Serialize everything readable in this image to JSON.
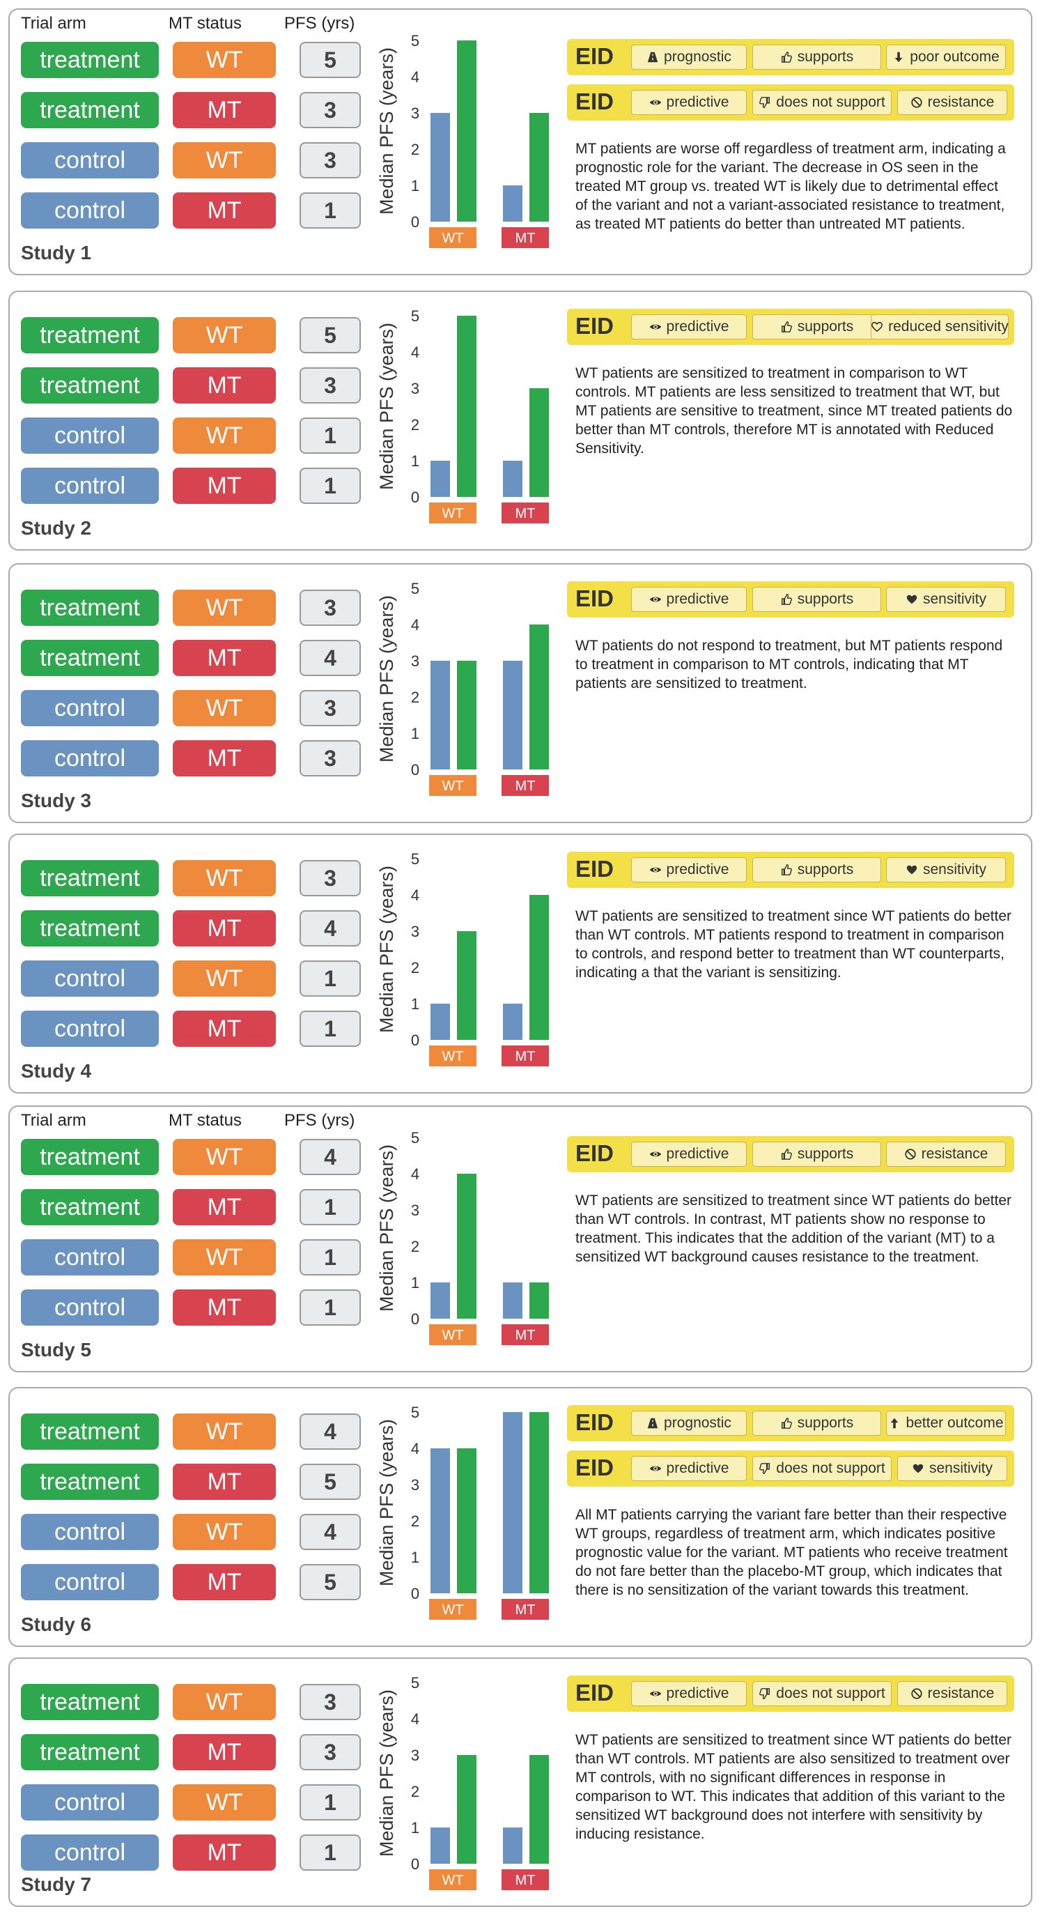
{
  "header": {
    "trial_arm": "Trial arm",
    "mt_status": "MT status",
    "pfs": "PFS (yrs)"
  },
  "axis": {
    "ylabel": "Median PFS (years)",
    "ticks": [
      "0",
      "1",
      "2",
      "3",
      "4",
      "5"
    ],
    "groups": [
      "WT",
      "MT"
    ]
  },
  "colors": {
    "treatment": "#2ea84f",
    "control": "#6b93c2",
    "wt": "#ef8a3c",
    "mt": "#d7434f",
    "eid": "#f3df48"
  },
  "studies": [
    {
      "label": "Study 1",
      "rows": [
        {
          "arm": "treatment",
          "status": "WT",
          "pfs": "5"
        },
        {
          "arm": "treatment",
          "status": "MT",
          "pfs": "3"
        },
        {
          "arm": "control",
          "status": "WT",
          "pfs": "3"
        },
        {
          "arm": "control",
          "status": "MT",
          "pfs": "1"
        }
      ],
      "eids": [
        {
          "label": "EID",
          "tags": [
            {
              "icon": "road-icon",
              "text": "prognostic"
            },
            {
              "icon": "thumbs-up-icon",
              "text": "supports"
            },
            {
              "icon": "arrow-down-icon",
              "text": "poor outcome"
            }
          ]
        },
        {
          "label": "EID",
          "tags": [
            {
              "icon": "eye-icon",
              "text": "predictive"
            },
            {
              "icon": "thumbs-down-icon",
              "text": "does not support"
            },
            {
              "icon": "ban-icon",
              "text": "resistance"
            }
          ]
        }
      ],
      "description": "MT patients are worse off regardless of treatment arm, indicating a prognostic role for the variant. The decrease in OS seen in the treated MT group vs. treated WT is likely due to detrimental effect of the variant and not a variant-associated resistance to treatment, as treated MT patients do better than untreated MT patients."
    },
    {
      "label": "Study 2",
      "rows": [
        {
          "arm": "treatment",
          "status": "WT",
          "pfs": "5"
        },
        {
          "arm": "treatment",
          "status": "MT",
          "pfs": "3"
        },
        {
          "arm": "control",
          "status": "WT",
          "pfs": "1"
        },
        {
          "arm": "control",
          "status": "MT",
          "pfs": "1"
        }
      ],
      "eids": [
        {
          "label": "EID",
          "tags": [
            {
              "icon": "eye-icon",
              "text": "predictive"
            },
            {
              "icon": "thumbs-up-icon",
              "text": "supports"
            },
            {
              "icon": "heart-outline-icon",
              "text": "reduced sensitivity"
            }
          ]
        }
      ],
      "description": "WT patients are sensitized to treatment in comparison to WT controls. MT patients are less sensitized to treatment that WT, but MT patients are sensitive to treatment, since MT treated patients do better than MT controls, therefore MT is annotated with Reduced Sensitivity."
    },
    {
      "label": "Study 3",
      "rows": [
        {
          "arm": "treatment",
          "status": "WT",
          "pfs": "3"
        },
        {
          "arm": "treatment",
          "status": "MT",
          "pfs": "4"
        },
        {
          "arm": "control",
          "status": "WT",
          "pfs": "3"
        },
        {
          "arm": "control",
          "status": "MT",
          "pfs": "3"
        }
      ],
      "eids": [
        {
          "label": "EID",
          "tags": [
            {
              "icon": "eye-icon",
              "text": "predictive"
            },
            {
              "icon": "thumbs-up-icon",
              "text": "supports"
            },
            {
              "icon": "heart-icon",
              "text": "sensitivity"
            }
          ]
        }
      ],
      "description": "WT patients do not respond to treatment, but MT patients respond to treatment in comparison to MT controls, indicating that MT patients are sensitized to treatment."
    },
    {
      "label": "Study 4",
      "rows": [
        {
          "arm": "treatment",
          "status": "WT",
          "pfs": "3"
        },
        {
          "arm": "treatment",
          "status": "MT",
          "pfs": "4"
        },
        {
          "arm": "control",
          "status": "WT",
          "pfs": "1"
        },
        {
          "arm": "control",
          "status": "MT",
          "pfs": "1"
        }
      ],
      "eids": [
        {
          "label": "EID",
          "tags": [
            {
              "icon": "eye-icon",
              "text": "predictive"
            },
            {
              "icon": "thumbs-up-icon",
              "text": "supports"
            },
            {
              "icon": "heart-icon",
              "text": "sensitivity"
            }
          ]
        }
      ],
      "description": "WT patients are sensitized to treatment since WT patients do better than WT controls. MT patients respond to treatment in comparison to controls, and respond better to treatment than WT counterparts, indicating a that the variant is sensitizing."
    },
    {
      "label": "Study 5",
      "rows": [
        {
          "arm": "treatment",
          "status": "WT",
          "pfs": "4"
        },
        {
          "arm": "treatment",
          "status": "MT",
          "pfs": "1"
        },
        {
          "arm": "control",
          "status": "WT",
          "pfs": "1"
        },
        {
          "arm": "control",
          "status": "MT",
          "pfs": "1"
        }
      ],
      "eids": [
        {
          "label": "EID",
          "tags": [
            {
              "icon": "eye-icon",
              "text": "predictive"
            },
            {
              "icon": "thumbs-up-icon",
              "text": "supports"
            },
            {
              "icon": "ban-icon",
              "text": "resistance"
            }
          ]
        }
      ],
      "description": "WT patients are sensitized to treatment since WT patients do better than WT controls. In contrast, MT patients show no response to treatment. This indicates that the addition of the variant (MT) to a sensitized WT background causes resistance to the treatment."
    },
    {
      "label": "Study 6",
      "rows": [
        {
          "arm": "treatment",
          "status": "WT",
          "pfs": "4"
        },
        {
          "arm": "treatment",
          "status": "MT",
          "pfs": "5"
        },
        {
          "arm": "control",
          "status": "WT",
          "pfs": "4"
        },
        {
          "arm": "control",
          "status": "MT",
          "pfs": "5"
        }
      ],
      "eids": [
        {
          "label": "EID",
          "tags": [
            {
              "icon": "road-icon",
              "text": "prognostic"
            },
            {
              "icon": "thumbs-up-icon",
              "text": "supports"
            },
            {
              "icon": "arrow-up-icon",
              "text": "better outcome"
            }
          ]
        },
        {
          "label": "EID",
          "tags": [
            {
              "icon": "eye-icon",
              "text": "predictive"
            },
            {
              "icon": "thumbs-down-icon",
              "text": "does not support"
            },
            {
              "icon": "heart-icon",
              "text": "sensitivity"
            }
          ]
        }
      ],
      "description": "All MT patients carrying the variant fare better than their respective WT groups, regardless of treatment arm, which indicates positive prognostic value for the variant. MT patients who receive treatment do not fare better than the placebo-MT group, which indicates that there is no sensitization of the variant towards this treatment."
    },
    {
      "label": "Study 7",
      "rows": [
        {
          "arm": "treatment",
          "status": "WT",
          "pfs": "3"
        },
        {
          "arm": "treatment",
          "status": "MT",
          "pfs": "3"
        },
        {
          "arm": "control",
          "status": "WT",
          "pfs": "1"
        },
        {
          "arm": "control",
          "status": "MT",
          "pfs": "1"
        }
      ],
      "eids": [
        {
          "label": "EID",
          "tags": [
            {
              "icon": "eye-icon",
              "text": "predictive"
            },
            {
              "icon": "thumbs-down-icon",
              "text": "does not support"
            },
            {
              "icon": "ban-icon",
              "text": "resistance"
            }
          ]
        }
      ],
      "description": "WT patients are sensitized to treatment since WT patients do better than WT controls. MT patients are also sensitized to treatment over MT controls, with no significant differences in response in comparison to WT. This indicates that addition of this variant to the sensitized WT background does not interfere with sensitivity by inducing resistance."
    }
  ]
}
